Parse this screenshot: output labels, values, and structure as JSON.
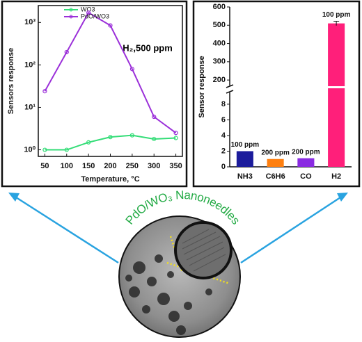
{
  "chart_data": [
    {
      "type": "line",
      "log_y": true,
      "x": [
        50,
        100,
        150,
        200,
        250,
        300,
        350
      ],
      "xlim": [
        35,
        365
      ],
      "xticks": [
        50,
        100,
        150,
        200,
        250,
        300,
        350
      ],
      "ylim": [
        0.7,
        2500
      ],
      "yticks": [
        {
          "value": 1,
          "label": "10⁰"
        },
        {
          "value": 10,
          "label": "10¹"
        },
        {
          "value": 100,
          "label": "10²"
        },
        {
          "value": 1000,
          "label": "10³"
        }
      ],
      "x_label": "Temperature, °C",
      "y_label": "Sensors response",
      "annotation": "H₂,500 ppm",
      "legend": "top",
      "series": [
        {
          "name": "WO3",
          "color": "#33dd77",
          "values": [
            1.0,
            1.0,
            1.5,
            2.0,
            2.2,
            1.8,
            1.9
          ]
        },
        {
          "name": "PdO/WO3",
          "color": "#9b30d9",
          "values": [
            24,
            200,
            1700,
            850,
            80,
            6,
            2.5
          ]
        }
      ]
    },
    {
      "type": "broken_bar",
      "categories": [
        "NH3",
        "C6H6",
        "CO",
        "H2"
      ],
      "values": [
        2.0,
        1.0,
        1.1,
        510
      ],
      "errors": [
        0,
        0,
        0,
        12
      ],
      "colors": [
        "#1c1c9c",
        "#ff8010",
        "#8a2be2",
        "#ff1f7a"
      ],
      "bar_labels": [
        "100 ppm",
        "200 ppm",
        "200 ppm",
        "100 ppm"
      ],
      "ylim": [
        0,
        600
      ],
      "break": [
        9.5,
        170
      ],
      "yticks": [
        0,
        2,
        4,
        6,
        8,
        200,
        300,
        400,
        500,
        600
      ],
      "y_label": "Sensor response"
    }
  ],
  "image": {
    "caption": "PdO/WO₃ Nanoneedles"
  }
}
